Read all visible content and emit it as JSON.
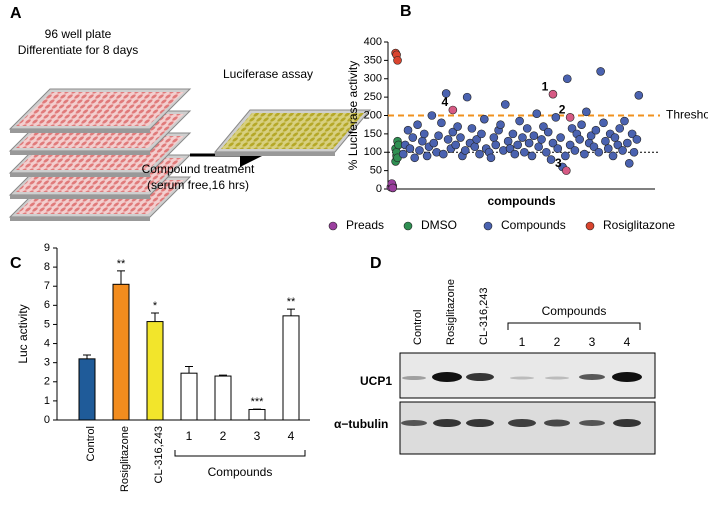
{
  "panel_a": {
    "label": "A",
    "plate_title": "96 well plate",
    "plate_subtitle": "Differentiate for 8 days",
    "assay": "Luciferase assay",
    "treatment": "Compound treatment",
    "treatment_conditions": "(serum free,16 hrs)"
  },
  "chart_data": [
    {
      "type": "scatter",
      "panel": "B",
      "ylabel": "% Luciferase activity",
      "xlabel": "compounds",
      "xlim": [
        0,
        280
      ],
      "ylim": [
        0,
        400
      ],
      "yticks": [
        0,
        50,
        100,
        150,
        200,
        250,
        300,
        350,
        400
      ],
      "series": [
        {
          "name": "Preads",
          "color": "#9a3f9e",
          "x": [
            3,
            4,
            5,
            4,
            5
          ],
          "values": [
            5,
            12,
            8,
            15,
            3
          ]
        },
        {
          "name": "DMSO",
          "color": "#2f8f52",
          "x": [
            8,
            9,
            10,
            8,
            9,
            11,
            10
          ],
          "values": [
            75,
            90,
            130,
            110,
            100,
            120,
            85
          ]
        },
        {
          "name": "Compounds",
          "color": "#4a62b0",
          "x": [
            16,
            18,
            21,
            23,
            26,
            28,
            31,
            33,
            36,
            38,
            41,
            43,
            46,
            48,
            51,
            53,
            56,
            58,
            61,
            63,
            66,
            68,
            71,
            73,
            76,
            78,
            81,
            83,
            86,
            88,
            91,
            93,
            96,
            98,
            101,
            103,
            106,
            108,
            111,
            113,
            116,
            118,
            121,
            123,
            126,
            128,
            131,
            133,
            136,
            138,
            141,
            143,
            146,
            148,
            151,
            153,
            156,
            158,
            161,
            163,
            166,
            168,
            171,
            173,
            176,
            178,
            181,
            183,
            186,
            188,
            191,
            193,
            196,
            198,
            201,
            203,
            206,
            208,
            211,
            213,
            216,
            218,
            221,
            223,
            226,
            228,
            231,
            233,
            236,
            238,
            241,
            243,
            246,
            248,
            251,
            253,
            256,
            258,
            261,
            263
          ],
          "values": [
            95,
            120,
            160,
            110,
            140,
            85,
            175,
            105,
            130,
            150,
            90,
            115,
            200,
            125,
            100,
            145,
            180,
            95,
            260,
            135,
            110,
            155,
            120,
            170,
            140,
            90,
            105,
            250,
            125,
            165,
            115,
            135,
            95,
            150,
            190,
            110,
            100,
            85,
            140,
            120,
            160,
            175,
            105,
            230,
            130,
            110,
            150,
            95,
            120,
            185,
            140,
            100,
            165,
            125,
            90,
            145,
            205,
            115,
            135,
            170,
            100,
            155,
            80,
            125,
            195,
            110,
            140,
            60,
            90,
            300,
            120,
            165,
            105,
            150,
            135,
            175,
            95,
            210,
            125,
            145,
            115,
            160,
            100,
            320,
            180,
            130,
            110,
            150,
            90,
            140,
            120,
            165,
            105,
            185,
            125,
            70,
            150,
            100,
            135,
            255
          ]
        },
        {
          "name": "Rosiglitazone",
          "color": "#d9442e",
          "x": [
            8,
            9,
            10
          ],
          "values": [
            370,
            365,
            350
          ]
        }
      ],
      "annotations": [
        {
          "text": "1",
          "x": 173,
          "y": 258
        },
        {
          "text": "2",
          "x": 191,
          "y": 195
        },
        {
          "text": "3",
          "x": 187,
          "y": 50
        },
        {
          "text": "4",
          "x": 68,
          "y": 215
        }
      ],
      "annotation_color": "#d65a84",
      "reference_lines": [
        {
          "value": 200,
          "label": "Threshold",
          "color": "#f0921e",
          "style": "dashed"
        },
        {
          "value": 100,
          "color": "#000000",
          "style": "dotted"
        }
      ]
    },
    {
      "type": "bar",
      "panel": "C",
      "ylabel": "Luc activity",
      "categories": [
        "Control",
        "Rosiglitazone",
        "CL-316,243",
        "1",
        "2",
        "3",
        "4"
      ],
      "values": [
        3.2,
        7.1,
        5.15,
        2.45,
        2.3,
        0.55,
        5.45
      ],
      "errors": [
        0.2,
        0.7,
        0.45,
        0.35,
        0.05,
        0.02,
        0.35
      ],
      "colors": [
        "#1f5b99",
        "#f28c1e",
        "#f2e52b",
        "#ffffff",
        "#ffffff",
        "#ffffff",
        "#ffffff"
      ],
      "significance": [
        null,
        "**",
        "*",
        null,
        null,
        "***",
        "**"
      ],
      "group_label": "Compounds",
      "ylim": [
        0,
        9
      ],
      "yticks": [
        0,
        1,
        2,
        3,
        4,
        5,
        6,
        7,
        8,
        9
      ]
    }
  ],
  "panel_d": {
    "label": "D",
    "lanes": [
      "Control",
      "Rosiglitazone",
      "CL-316,243",
      "1",
      "2",
      "3",
      "4"
    ],
    "lane_group": "Compounds",
    "rows": [
      "UCP1",
      "α−tubulin"
    ]
  }
}
